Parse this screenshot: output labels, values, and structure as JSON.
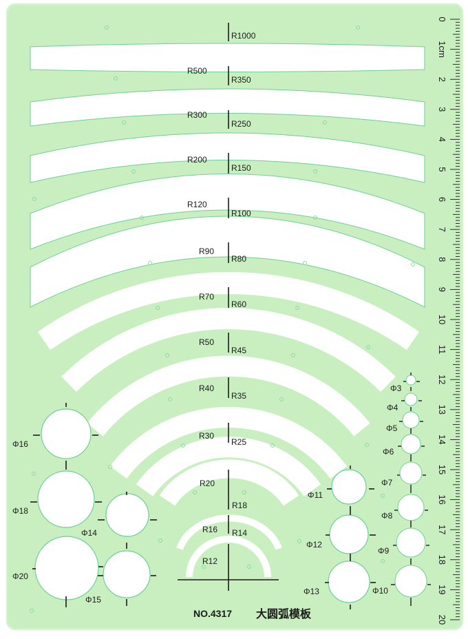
{
  "template": {
    "model_number": "NO.4317",
    "title_cn": "大圆弧模板",
    "colors": {
      "plate": "#c8eec0",
      "plate_edge": "#8fd6a0",
      "cutout": "#ffffff",
      "cutout_edge": "#5cc890",
      "ink": "#1a1a1a",
      "background": "#ffffff"
    }
  },
  "ruler": {
    "unit_label": "1cm",
    "numbers": [
      "0",
      "1cm",
      "2",
      "3",
      "4",
      "5",
      "6",
      "7",
      "8",
      "9",
      "10",
      "11",
      "12",
      "13",
      "14",
      "15",
      "16",
      "17",
      "18",
      "19",
      "20"
    ]
  },
  "arcs": [
    {
      "left_label": "",
      "right_label": "R1000"
    },
    {
      "left_label": "R500",
      "right_label": "R350"
    },
    {
      "left_label": "R300",
      "right_label": "R250"
    },
    {
      "left_label": "R200",
      "right_label": "R150"
    },
    {
      "left_label": "R120",
      "right_label": "R100"
    },
    {
      "left_label": "R90",
      "right_label": "R80"
    },
    {
      "left_label": "R70",
      "right_label": "R60"
    },
    {
      "left_label": "R50",
      "right_label": "R45"
    },
    {
      "left_label": "R40",
      "right_label": "R35"
    },
    {
      "left_label": "R30",
      "right_label": "R25"
    },
    {
      "left_label": "R20",
      "right_label": "R18"
    },
    {
      "left_label": "R16",
      "right_label": "R14"
    },
    {
      "left_label": "R12",
      "right_label": ""
    }
  ],
  "circles_left": [
    {
      "label": "Φ16"
    },
    {
      "label": "Φ18"
    },
    {
      "label": "Φ14"
    },
    {
      "label": "Φ20"
    },
    {
      "label": "Φ15"
    }
  ],
  "circles_middle": [
    {
      "label": "Φ11"
    },
    {
      "label": "Φ12"
    },
    {
      "label": "Φ13"
    }
  ],
  "circles_right": [
    {
      "label": "Φ3"
    },
    {
      "label": "Φ4"
    },
    {
      "label": "Φ5"
    },
    {
      "label": "Φ6"
    },
    {
      "label": "Φ7"
    },
    {
      "label": "Φ8"
    },
    {
      "label": "Φ9"
    },
    {
      "label": "Φ10"
    }
  ]
}
